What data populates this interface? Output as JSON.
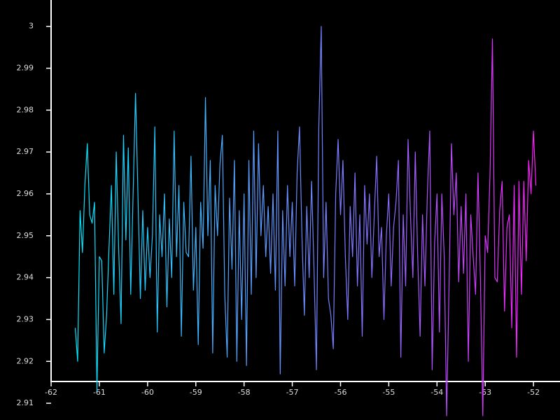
{
  "chart_data": {
    "type": "line",
    "x": [
      -61.5,
      -61.45,
      -61.4,
      -61.35,
      -61.3,
      -61.25,
      -61.2,
      -61.15,
      -61.1,
      -61.05,
      -61.0,
      -60.95,
      -60.9,
      -60.85,
      -60.8,
      -60.75,
      -60.7,
      -60.65,
      -60.6,
      -60.55,
      -60.5,
      -60.45,
      -60.4,
      -60.35,
      -60.3,
      -60.25,
      -60.2,
      -60.15,
      -60.1,
      -60.05,
      -60.0,
      -59.95,
      -59.9,
      -59.85,
      -59.8,
      -59.75,
      -59.7,
      -59.65,
      -59.6,
      -59.55,
      -59.5,
      -59.45,
      -59.4,
      -59.35,
      -59.3,
      -59.25,
      -59.2,
      -59.15,
      -59.1,
      -59.05,
      -59.0,
      -58.95,
      -58.9,
      -58.85,
      -58.8,
      -58.75,
      -58.7,
      -58.65,
      -58.6,
      -58.55,
      -58.5,
      -58.45,
      -58.4,
      -58.35,
      -58.3,
      -58.25,
      -58.2,
      -58.15,
      -58.1,
      -58.05,
      -58.0,
      -57.95,
      -57.9,
      -57.85,
      -57.8,
      -57.75,
      -57.7,
      -57.65,
      -57.6,
      -57.55,
      -57.5,
      -57.45,
      -57.4,
      -57.35,
      -57.3,
      -57.25,
      -57.2,
      -57.15,
      -57.1,
      -57.05,
      -57.0,
      -56.95,
      -56.9,
      -56.85,
      -56.8,
      -56.75,
      -56.7,
      -56.65,
      -56.6,
      -56.55,
      -56.5,
      -56.45,
      -56.4,
      -56.35,
      -56.3,
      -56.25,
      -56.2,
      -56.15,
      -56.1,
      -56.05,
      -56.0,
      -55.95,
      -55.9,
      -55.85,
      -55.8,
      -55.75,
      -55.7,
      -55.65,
      -55.6,
      -55.55,
      -55.5,
      -55.45,
      -55.4,
      -55.35,
      -55.3,
      -55.25,
      -55.2,
      -55.15,
      -55.1,
      -55.05,
      -55.0,
      -54.95,
      -54.9,
      -54.85,
      -54.8,
      -54.75,
      -54.7,
      -54.65,
      -54.6,
      -54.55,
      -54.5,
      -54.45,
      -54.4,
      -54.35,
      -54.3,
      -54.25,
      -54.2,
      -54.15,
      -54.1,
      -54.05,
      -54.0,
      -53.95,
      -53.9,
      -53.85,
      -53.8,
      -53.75,
      -53.7,
      -53.65,
      -53.6,
      -53.55,
      -53.5,
      -53.45,
      -53.4,
      -53.35,
      -53.3,
      -53.25,
      -53.2,
      -53.15,
      -53.1,
      -53.05,
      -53.0,
      -52.95,
      -52.9,
      -52.85,
      -52.8,
      -52.75,
      -52.7,
      -52.65,
      -52.6,
      -52.55,
      -52.5,
      -52.45,
      -52.4,
      -52.35,
      -52.3,
      -52.25,
      -52.2,
      -52.15,
      -52.1,
      -52.05,
      -52.0,
      -51.95
    ],
    "values": [
      2.928,
      2.92,
      2.956,
      2.946,
      2.962,
      2.972,
      2.955,
      2.953,
      2.958,
      2.913,
      2.945,
      2.944,
      2.922,
      2.931,
      2.947,
      2.962,
      2.936,
      2.97,
      2.947,
      2.929,
      2.974,
      2.949,
      2.971,
      2.936,
      2.96,
      2.984,
      2.96,
      2.935,
      2.956,
      2.937,
      2.952,
      2.94,
      2.95,
      2.976,
      2.927,
      2.955,
      2.945,
      2.96,
      2.933,
      2.954,
      2.94,
      2.975,
      2.945,
      2.962,
      2.926,
      2.958,
      2.946,
      2.945,
      2.969,
      2.937,
      2.952,
      2.924,
      2.958,
      2.947,
      2.983,
      2.95,
      2.968,
      2.922,
      2.962,
      2.95,
      2.967,
      2.974,
      2.936,
      2.921,
      2.959,
      2.942,
      2.968,
      2.92,
      2.956,
      2.93,
      2.96,
      2.919,
      2.968,
      2.936,
      2.975,
      2.94,
      2.972,
      2.95,
      2.962,
      2.945,
      2.957,
      2.941,
      2.96,
      2.937,
      2.975,
      2.917,
      2.956,
      2.938,
      2.962,
      2.945,
      2.958,
      2.938,
      2.965,
      2.976,
      2.95,
      2.931,
      2.957,
      2.94,
      2.963,
      2.942,
      2.918,
      2.976,
      3.0,
      2.94,
      2.958,
      2.935,
      2.931,
      2.923,
      2.96,
      2.973,
      2.955,
      2.968,
      2.945,
      2.93,
      2.957,
      2.945,
      2.965,
      2.938,
      2.955,
      2.926,
      2.962,
      2.948,
      2.96,
      2.94,
      2.955,
      2.969,
      2.945,
      2.952,
      2.93,
      2.95,
      2.96,
      2.938,
      2.952,
      2.958,
      2.968,
      2.921,
      2.955,
      2.938,
      2.973,
      2.955,
      2.94,
      2.97,
      2.945,
      2.926,
      2.955,
      2.938,
      2.96,
      2.975,
      2.918,
      2.948,
      2.96,
      2.927,
      2.96,
      2.945,
      2.907,
      2.938,
      2.972,
      2.955,
      2.965,
      2.939,
      2.957,
      2.941,
      2.96,
      2.92,
      2.955,
      2.945,
      2.936,
      2.965,
      2.94,
      2.907,
      2.95,
      2.946,
      2.965,
      2.997,
      2.94,
      2.939,
      2.956,
      2.963,
      2.932,
      2.952,
      2.955,
      2.928,
      2.962,
      2.921,
      2.963,
      2.936,
      2.963,
      2.944,
      2.968,
      2.96,
      2.975,
      2.962
    ],
    "gradient": [
      "#00e8ff",
      "#4fa6ff",
      "#8a6cff",
      "#ff1eff"
    ],
    "xlim": [
      -63.06,
      -51.45
    ],
    "ylim": [
      2.906,
      3.0063
    ],
    "xticks": [
      -62,
      -61,
      -60,
      -59,
      -58,
      -57,
      -56,
      -55,
      -54,
      -53,
      -52
    ],
    "yticks": [
      2.91,
      2.92,
      2.93,
      2.94,
      2.95,
      2.96,
      2.97,
      2.98,
      2.99,
      3
    ]
  }
}
